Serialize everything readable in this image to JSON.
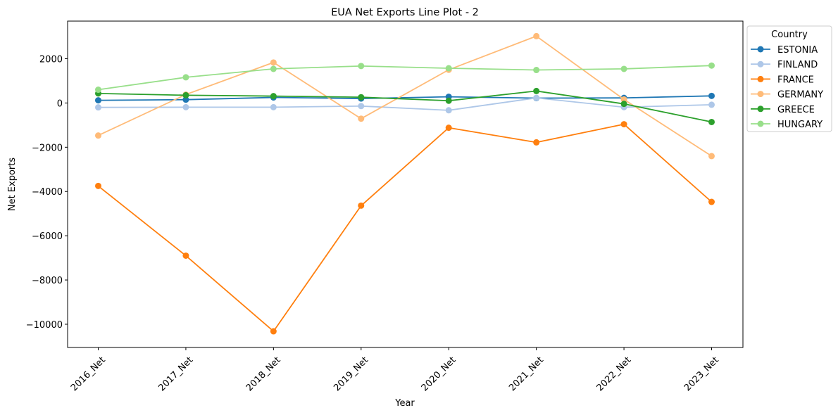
{
  "chart_data": {
    "type": "line",
    "title": "EUA Net Exports Line Plot - 2",
    "xlabel": "Year",
    "ylabel": "Net Exports",
    "categories": [
      "2016_Net",
      "2017_Net",
      "2018_Net",
      "2019_Net",
      "2020_Net",
      "2021_Net",
      "2022_Net",
      "2023_Net"
    ],
    "ylim": [
      -11050,
      3700
    ],
    "yticks": [
      -10000,
      -8000,
      -6000,
      -4000,
      -2000,
      0,
      2000
    ],
    "ytick_labels": [
      "−10000",
      "−8000",
      "−6000",
      "−4000",
      "−2000",
      "0",
      "2000"
    ],
    "grid": false,
    "legend_title": "Country",
    "legend_position": "outside-upper-right",
    "series": [
      {
        "name": "ESTONIA",
        "color": "#1f77b4",
        "values": [
          120,
          150,
          250,
          200,
          280,
          220,
          230,
          320
        ]
      },
      {
        "name": "FINLAND",
        "color": "#aec7e8",
        "values": [
          -200,
          -190,
          -190,
          -140,
          -330,
          230,
          -190,
          -80
        ]
      },
      {
        "name": "FRANCE",
        "color": "#ff7f0e",
        "values": [
          -3750,
          -6900,
          -10320,
          -4640,
          -1120,
          -1780,
          -960,
          -4470
        ]
      },
      {
        "name": "GERMANY",
        "color": "#ffbb78",
        "values": [
          -1470,
          380,
          1830,
          -710,
          1500,
          3020,
          160,
          -2400
        ]
      },
      {
        "name": "GREECE",
        "color": "#2ca02c",
        "values": [
          430,
          350,
          310,
          260,
          100,
          540,
          -40,
          -860
        ]
      },
      {
        "name": "HUNGARY",
        "color": "#98df8a",
        "values": [
          600,
          1160,
          1540,
          1670,
          1570,
          1490,
          1540,
          1690
        ]
      }
    ]
  }
}
